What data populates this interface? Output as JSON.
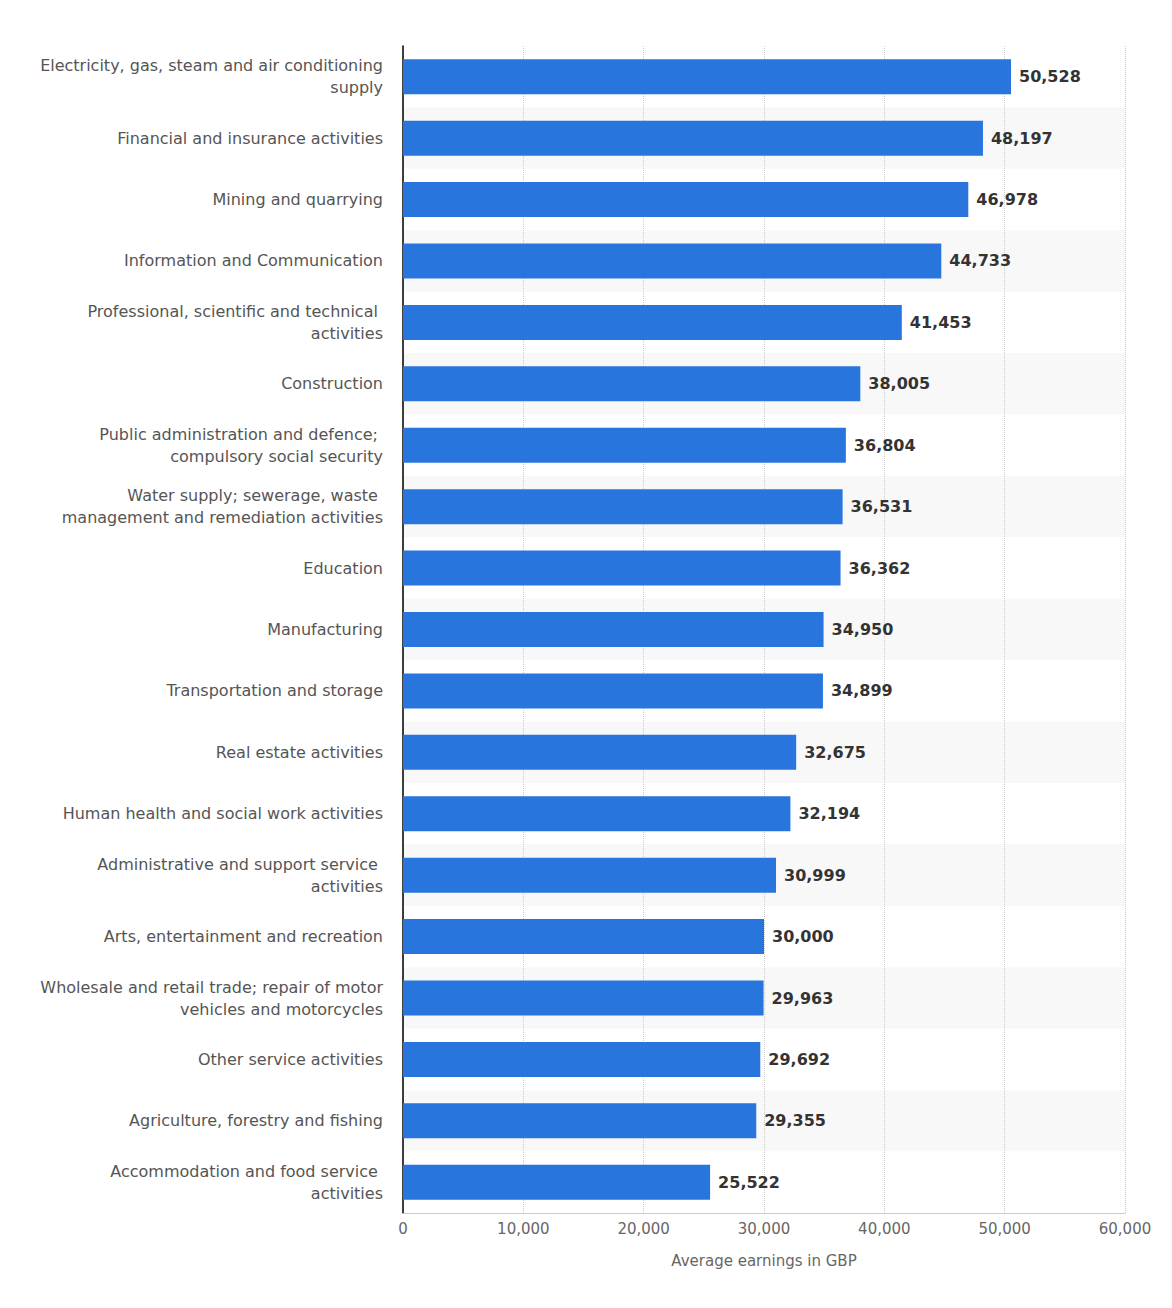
{
  "chart_data": {
    "type": "bar",
    "orientation": "horizontal",
    "x_label": "Average earnings in GBP",
    "categories": [
      "Electricity, gas, steam and air conditioning supply",
      "Financial and insurance activities",
      "Mining and quarrying",
      "Information and Communication",
      "Professional, scientific and technical activities",
      "Construction",
      "Public administration and defence; compulsory social security",
      "Water supply; sewerage, waste management and remediation activities",
      "Education",
      "Manufacturing",
      "Transportation and storage",
      "Real estate activities",
      "Human health and social work activities",
      "Administrative and support service activities",
      "Arts, entertainment and recreation",
      "Wholesale and retail trade; repair of motor vehicles and motorcycles",
      "Other service activities",
      "Agriculture, forestry and fishing",
      "Accommodation and food service activities"
    ],
    "values": [
      50528,
      48197,
      46978,
      44733,
      41453,
      38005,
      36804,
      36531,
      36362,
      34950,
      34899,
      32675,
      32194,
      30999,
      30000,
      29963,
      29692,
      29355,
      25522
    ],
    "value_labels": [
      "50,528",
      "48,197",
      "46,978",
      "44,733",
      "41,453",
      "38,005",
      "36,804",
      "36,531",
      "36,362",
      "34,950",
      "34,899",
      "32,675",
      "32,194",
      "30,999",
      "30,000",
      "29,963",
      "29,692",
      "29,355",
      "25,522"
    ],
    "color": "#2876dd",
    "xlim": [
      0,
      60000
    ],
    "xticks": [
      0,
      {
        "value": 10000,
        "label": "10,000"
      },
      {
        "value": 20000,
        "label": "20,000"
      },
      {
        "value": 30000,
        "label": "30,000"
      },
      {
        "value": 40000,
        "label": "40,000"
      },
      {
        "value": 50000,
        "label": "50,000"
      },
      {
        "value": 60000,
        "label": "60,000"
      }
    ],
    "grid": true,
    "data_labels": true
  }
}
